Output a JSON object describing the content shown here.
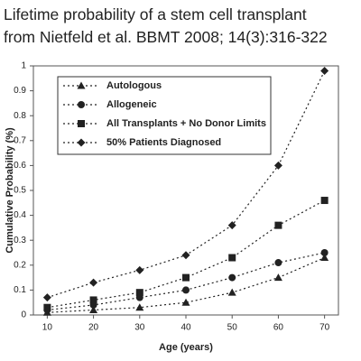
{
  "chart_data": {
    "type": "line",
    "title": [
      "Lifetime probability of a stem cell transplant",
      "from Nietfeld et al. BBMT 2008; 14(3):316-322"
    ],
    "x_label": "Age (years)",
    "y_label": "Cumulative Probability (%)",
    "x": [
      10,
      20,
      30,
      40,
      50,
      60,
      70
    ],
    "xlim": [
      7,
      73
    ],
    "xticks": [
      10,
      20,
      30,
      40,
      50,
      60,
      70
    ],
    "ylim": [
      0,
      1
    ],
    "yticks": [
      0,
      0.1,
      0.2,
      0.3,
      0.4,
      0.5,
      0.6,
      0.7,
      0.8,
      0.9,
      1
    ],
    "legend": "upper left",
    "series": [
      {
        "name": "Autologous",
        "color": "#222222",
        "marker": "triangle",
        "values": [
          0.01,
          0.02,
          0.03,
          0.05,
          0.09,
          0.15,
          0.23
        ]
      },
      {
        "name": "Allogeneic",
        "color": "#222222",
        "marker": "circle",
        "values": [
          0.02,
          0.04,
          0.07,
          0.1,
          0.15,
          0.21,
          0.25
        ]
      },
      {
        "name": "All Transplants + No Donor Limits",
        "color": "#222222",
        "marker": "square",
        "values": [
          0.03,
          0.06,
          0.09,
          0.15,
          0.23,
          0.36,
          0.46
        ]
      },
      {
        "name": "50% Patients Diagnosed",
        "color": "#222222",
        "marker": "diamond",
        "values": [
          0.07,
          0.13,
          0.18,
          0.24,
          0.36,
          0.6,
          0.98
        ]
      }
    ]
  }
}
